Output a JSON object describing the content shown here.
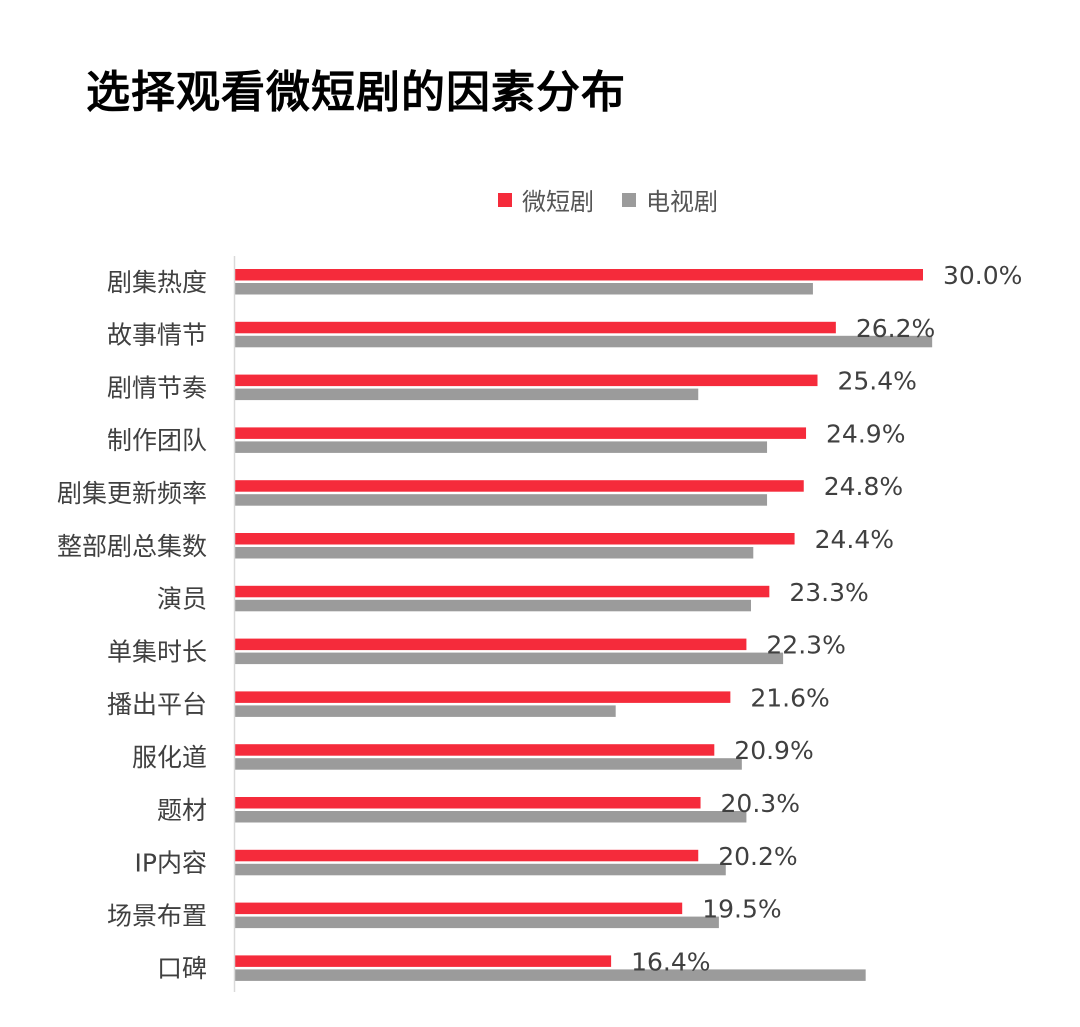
{
  "colors": {
    "series_primary": "#f52b3b",
    "series_secondary": "#9b9b9b",
    "axis": "#d9d9d9"
  },
  "chart_data": {
    "type": "bar",
    "orientation": "horizontal",
    "title": "选择观看微短剧的因素分布",
    "legend_position": "top",
    "grid": false,
    "xlim": [
      0,
      30.0
    ],
    "categories": [
      "剧集热度",
      "故事情节",
      "剧情节奏",
      "制作团队",
      "剧集更新频率",
      "整部剧总集数",
      "演员",
      "单集时长",
      "播出平台",
      "服化道",
      "题材",
      "IP内容",
      "场景布置",
      "口碑"
    ],
    "series": [
      {
        "name": "微短剧",
        "values": [
          30.0,
          26.2,
          25.4,
          24.9,
          24.8,
          24.4,
          23.3,
          22.3,
          21.6,
          20.9,
          20.3,
          20.2,
          19.5,
          16.4
        ],
        "labels": [
          "30.0%",
          "26.2%",
          "25.4%",
          "24.9%",
          "24.8%",
          "24.4%",
          "23.3%",
          "22.3%",
          "21.6%",
          "20.9%",
          "20.3%",
          "20.2%",
          "19.5%",
          "16.4%"
        ]
      },
      {
        "name": "电视剧",
        "values": [
          25.2,
          30.4,
          20.2,
          23.2,
          23.2,
          22.6,
          22.5,
          23.9,
          16.6,
          22.1,
          22.3,
          21.4,
          21.1,
          27.5
        ]
      }
    ]
  }
}
